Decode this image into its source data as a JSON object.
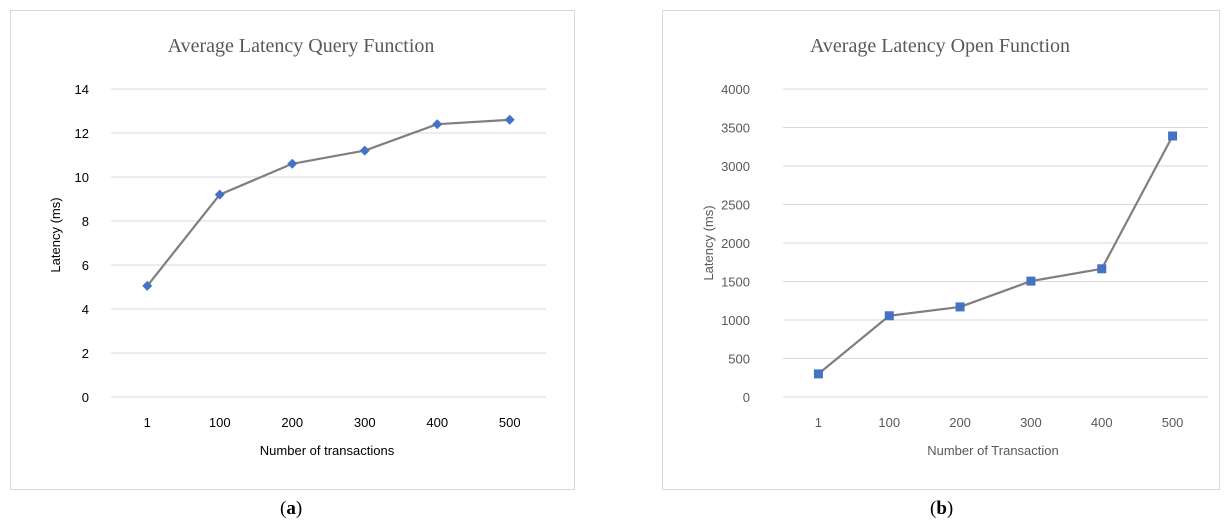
{
  "chart_data": [
    {
      "type": "line",
      "title": "Average Latency Query Function",
      "xlabel": "Number of transactions",
      "ylabel": "Latency (ms)",
      "categories": [
        "1",
        "100",
        "200",
        "300",
        "400",
        "500"
      ],
      "series": [
        {
          "values": [
            5.05,
            9.2,
            10.6,
            11.2,
            12.4,
            12.6
          ],
          "marker": "diamond"
        }
      ],
      "ylim": [
        0,
        14
      ],
      "yticks": [
        "0",
        "2",
        "4",
        "6",
        "8",
        "10",
        "12",
        "14"
      ],
      "grid": true,
      "line_color": "#7f7f7f",
      "marker_color": "#4472c4"
    },
    {
      "type": "line",
      "title": "Average Latency Open Function",
      "xlabel": "Number of Transaction",
      "ylabel": "Latency (ms)",
      "categories": [
        "1",
        "100",
        "200",
        "300",
        "400",
        "500"
      ],
      "series": [
        {
          "values": [
            300,
            1055,
            1170,
            1505,
            1665,
            3390
          ],
          "marker": "square"
        }
      ],
      "ylim": [
        0,
        4000
      ],
      "yticks": [
        "0",
        "500",
        "1000",
        "1500",
        "2000",
        "2500",
        "3000",
        "3500",
        "4000"
      ],
      "grid": true,
      "line_color": "#7f7f7f",
      "marker_color": "#4472c4"
    }
  ],
  "captions": {
    "a": {
      "open": "(",
      "letter": "a",
      "close": ")"
    },
    "b": {
      "open": "(",
      "letter": "b",
      "close": ")"
    }
  }
}
